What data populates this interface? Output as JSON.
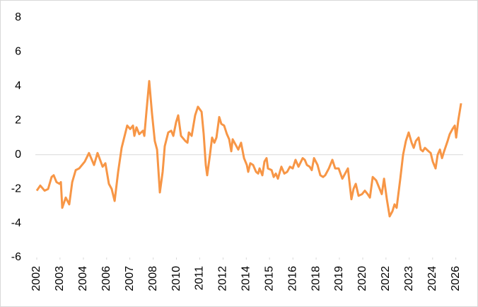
{
  "chart_data": {
    "type": "line",
    "series": [
      {
        "color": "#f79646",
        "x": [
          2002.0,
          2002.2,
          2002.45,
          2002.65,
          2002.85,
          2002.97,
          2003.13,
          2003.3,
          2003.38,
          2003.46,
          2003.66,
          2003.86,
          2004.03,
          2004.23,
          2004.43,
          2004.75,
          2004.99,
          2005.28,
          2005.48,
          2005.77,
          2005.93,
          2006.13,
          2006.29,
          2006.46,
          2006.66,
          2006.86,
          2007.18,
          2007.35,
          2007.51,
          2007.59,
          2007.71,
          2007.87,
          2008.08,
          2008.16,
          2008.28,
          2008.44,
          2008.6,
          2008.76,
          2008.89,
          2009.05,
          2009.21,
          2009.33,
          2009.53,
          2009.7,
          2009.82,
          2009.98,
          2010.1,
          2010.26,
          2010.51,
          2010.63,
          2010.71,
          2010.87,
          2011.07,
          2011.23,
          2011.44,
          2011.56,
          2011.68,
          2011.76,
          2011.92,
          2012.04,
          2012.17,
          2012.29,
          2012.45,
          2012.57,
          2012.73,
          2012.89,
          2013.02,
          2013.14,
          2013.22,
          2013.38,
          2013.54,
          2013.7,
          2013.87,
          2014.03,
          2014.11,
          2014.23,
          2014.39,
          2014.56,
          2014.68,
          2014.76,
          2014.92,
          2015.04,
          2015.16,
          2015.24,
          2015.45,
          2015.57,
          2015.69,
          2015.81,
          2016.01,
          2016.18,
          2016.34,
          2016.5,
          2016.66,
          2016.82,
          2016.99,
          2017.23,
          2017.35,
          2017.47,
          2017.63,
          2017.75,
          2017.88,
          2018.08,
          2018.24,
          2018.4,
          2018.52,
          2018.73,
          2018.93,
          2019.09,
          2019.29,
          2019.5,
          2019.66,
          2019.82,
          2020.02,
          2020.14,
          2020.27,
          2020.43,
          2020.63,
          2020.79,
          2020.95,
          2021.08,
          2021.24,
          2021.44,
          2021.6,
          2021.76,
          2021.89,
          2022.05,
          2022.21,
          2022.37,
          2022.49,
          2022.61,
          2022.82,
          2022.98,
          2023.14,
          2023.3,
          2023.47,
          2023.59,
          2023.71,
          2023.87,
          2023.99,
          2024.11,
          2024.23,
          2024.44,
          2024.56,
          2024.68,
          2024.84,
          2024.96,
          2025.09,
          2025.21,
          2025.33,
          2025.53,
          2025.65,
          2025.81,
          2025.94,
          2026.02,
          2026.14,
          2026.3
        ],
        "values": [
          -2.1,
          -1.8,
          -2.1,
          -2.0,
          -1.3,
          -1.2,
          -1.6,
          -1.7,
          -1.6,
          -3.1,
          -2.5,
          -2.9,
          -1.6,
          -0.9,
          -0.8,
          -0.4,
          0.1,
          -0.6,
          0.1,
          -0.7,
          -0.5,
          -1.7,
          -2.0,
          -2.7,
          -1.0,
          0.4,
          1.7,
          1.5,
          1.7,
          1.1,
          1.6,
          1.2,
          1.4,
          1.1,
          2.5,
          4.3,
          2.4,
          0.8,
          0.3,
          -2.2,
          -1.0,
          0.5,
          1.3,
          1.4,
          1.1,
          1.9,
          2.3,
          1.1,
          0.8,
          0.7,
          1.3,
          1.1,
          2.3,
          2.8,
          2.5,
          1.2,
          -0.6,
          -1.2,
          0.0,
          1.0,
          0.7,
          1.0,
          2.2,
          1.8,
          1.7,
          1.2,
          0.9,
          0.2,
          0.9,
          0.6,
          0.3,
          0.7,
          -0.2,
          -0.6,
          -1.0,
          -0.5,
          -0.6,
          -1.0,
          -1.1,
          -0.8,
          -1.2,
          -0.4,
          -0.2,
          -0.8,
          -0.9,
          -1.3,
          -1.1,
          -1.4,
          -0.7,
          -1.1,
          -1.0,
          -0.7,
          -0.8,
          -0.3,
          -0.7,
          -0.2,
          -0.3,
          -0.6,
          -0.7,
          -0.9,
          -0.2,
          -0.6,
          -1.2,
          -1.3,
          -1.2,
          -0.8,
          -0.3,
          -0.8,
          -0.8,
          -1.4,
          -1.1,
          -0.8,
          -2.6,
          -2.0,
          -1.7,
          -2.4,
          -2.3,
          -2.1,
          -2.3,
          -2.5,
          -1.3,
          -1.5,
          -1.9,
          -2.3,
          -1.4,
          -2.6,
          -3.6,
          -3.3,
          -2.9,
          -3.1,
          -1.4,
          0.0,
          0.8,
          1.3,
          0.7,
          0.4,
          0.8,
          1.0,
          0.3,
          0.2,
          0.4,
          0.2,
          0.1,
          -0.4,
          -0.8,
          0.0,
          0.3,
          -0.2,
          0.2,
          0.8,
          1.2,
          1.5,
          1.7,
          1.0,
          2.0,
          3.0
        ]
      }
    ],
    "xlim": [
      2002,
      2026.42
    ],
    "xticks": [
      2002,
      {
        "value": 2003.33,
        "label": "2003"
      },
      {
        "value": 2004.67,
        "label": "2004"
      },
      2006,
      {
        "value": 2007.33,
        "label": "2007"
      },
      {
        "value": 2008.67,
        "label": "2008"
      },
      2010,
      {
        "value": 2011.33,
        "label": "2011"
      },
      {
        "value": 2012.67,
        "label": "2012"
      },
      2014,
      {
        "value": 2015.33,
        "label": "2015"
      },
      {
        "value": 2016.67,
        "label": "2016"
      },
      2018,
      {
        "value": 2019.33,
        "label": "2019"
      },
      {
        "value": 2020.67,
        "label": "2020"
      },
      2022,
      {
        "value": 2023.33,
        "label": "2023"
      },
      {
        "value": 2024.67,
        "label": "2024"
      },
      2026
    ],
    "ylim": [
      -6,
      8
    ],
    "yticks": [
      -6,
      -4,
      -2,
      0,
      2,
      4,
      6,
      8
    ],
    "grid": false
  }
}
